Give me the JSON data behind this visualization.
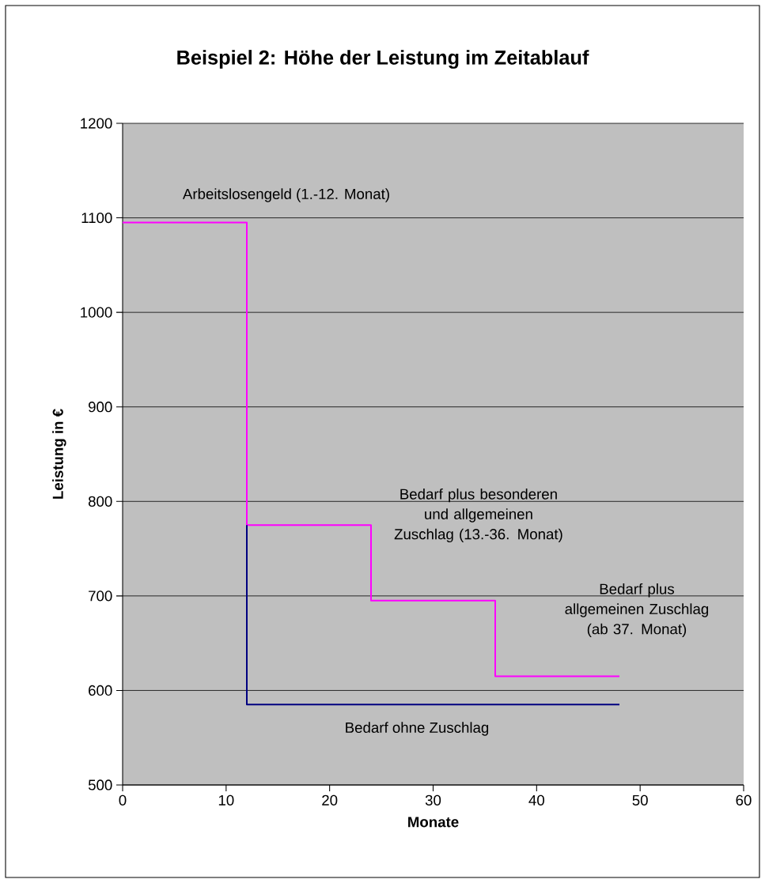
{
  "chart_data": {
    "type": "step",
    "title": "Beispiel 2: Höhe der Leistung im Zeitablauf",
    "xlabel": "Monate",
    "ylabel": "Leistung in €",
    "series": [
      {
        "color": "#ff00ff",
        "x": [
          0,
          12,
          24,
          36,
          48
        ],
        "values": [
          1095,
          775,
          695,
          615,
          615
        ]
      },
      {
        "color": "#000080",
        "x": [
          12,
          12,
          48
        ],
        "values": [
          775,
          585,
          585
        ]
      }
    ],
    "xlim": [
      0,
      60
    ],
    "xticks": [
      0,
      10,
      20,
      30,
      40,
      50,
      60
    ],
    "ylim": [
      500,
      1200
    ],
    "yticks": [
      500,
      600,
      700,
      800,
      900,
      1000,
      1100,
      1200
    ],
    "grid": "y",
    "legend": false,
    "marker": "none",
    "line_style": "solid",
    "annotations": [
      "Arbeitslosengeld (1.-12. Monat)",
      "Bedarf plus besonderen und allgemeinen Zuschlag (13.-36. Monat)",
      "Bedarf plus allgemeinen Zuschlag (ab 37. Monat)",
      "Bedarf ohne Zuschlag"
    ]
  }
}
